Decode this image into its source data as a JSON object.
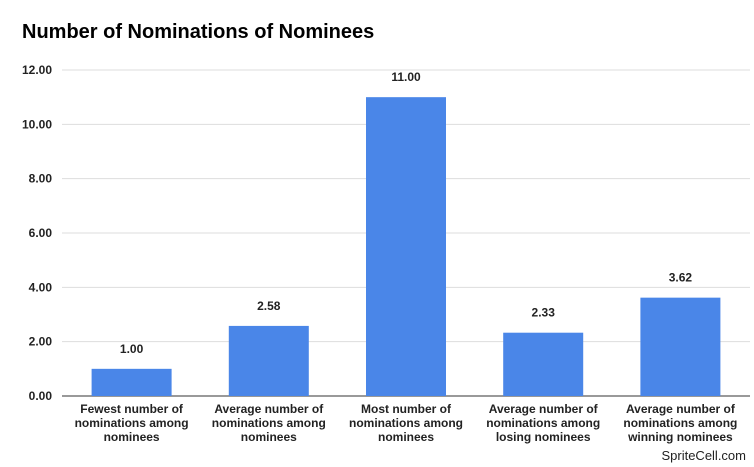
{
  "chart_data": {
    "type": "bar",
    "title": "Number of Nominations of Nominees",
    "categories": [
      [
        "Fewest number of",
        "nominations among",
        "nominees"
      ],
      [
        "Average number of",
        "nominations among",
        "nominees"
      ],
      [
        "Most number of",
        "nominations among",
        "nominees"
      ],
      [
        "Average number of",
        "nominations among",
        "losing nominees"
      ],
      [
        "Average number of",
        "nominations among",
        "winning nominees"
      ]
    ],
    "values": [
      1.0,
      2.58,
      11.0,
      2.33,
      3.62
    ],
    "data_labels": [
      "1.00",
      "2.58",
      "11.00",
      "2.33",
      "3.62"
    ],
    "yticks": [
      "0.00",
      "2.00",
      "4.00",
      "6.00",
      "8.00",
      "10.00",
      "12.00"
    ],
    "ylim": [
      0,
      12
    ],
    "grid": true,
    "bar_color": "#4a86e8",
    "grid_color": "#dddddd"
  },
  "watermark": "SpriteCell.com"
}
